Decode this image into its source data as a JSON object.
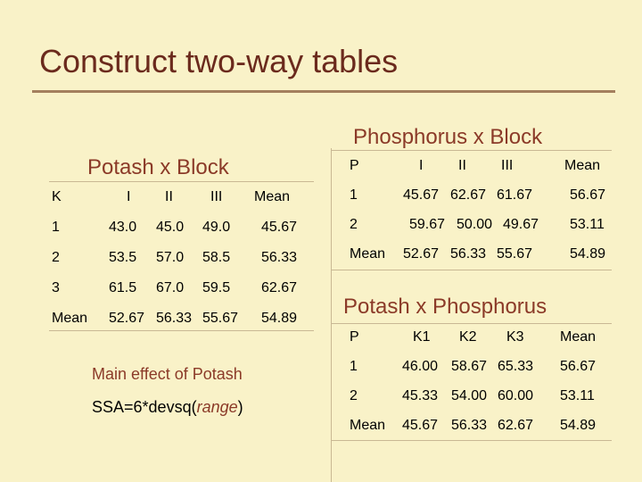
{
  "slide_title": "Construct two-way tables",
  "potash_block": {
    "caption": "Potash x Block",
    "header": [
      "K",
      "I",
      "II",
      "III",
      "Mean"
    ],
    "rows": [
      [
        "1",
        "43.0",
        "45.0",
        "49.0",
        "45.67"
      ],
      [
        "2",
        "53.5",
        "57.0",
        "58.5",
        "56.33"
      ],
      [
        "3",
        "61.5",
        "67.0",
        "59.5",
        "62.67"
      ],
      [
        "Mean",
        "52.67",
        "56.33",
        "55.67",
        "54.89"
      ]
    ]
  },
  "phosphorus_block": {
    "caption": "Phosphorus x Block",
    "header": [
      "P",
      "I",
      "II",
      "III",
      "Mean"
    ],
    "rows": [
      [
        "1",
        "45.67",
        "62.67",
        "61.67",
        "56.67"
      ],
      [
        "2",
        "59.67",
        "50.00",
        "49.67",
        "53.11"
      ],
      [
        "Mean",
        "52.67",
        "56.33",
        "55.67",
        "54.89"
      ]
    ]
  },
  "potash_phosphorus": {
    "caption": "Potash x Phosphorus",
    "header": [
      "P",
      "K1",
      "K2",
      "K3",
      "Mean"
    ],
    "rows": [
      [
        "1",
        "46.00",
        "58.67",
        "65.33",
        "56.67"
      ],
      [
        "2",
        "45.33",
        "54.00",
        "60.00",
        "53.11"
      ],
      [
        "Mean",
        "45.67",
        "56.33",
        "62.67",
        "54.89"
      ]
    ]
  },
  "main_effect": {
    "label": "Main effect of Potash",
    "formula_prefix": "SSA=6*devsq(",
    "formula_arg": "range",
    "formula_suffix": ")"
  }
}
